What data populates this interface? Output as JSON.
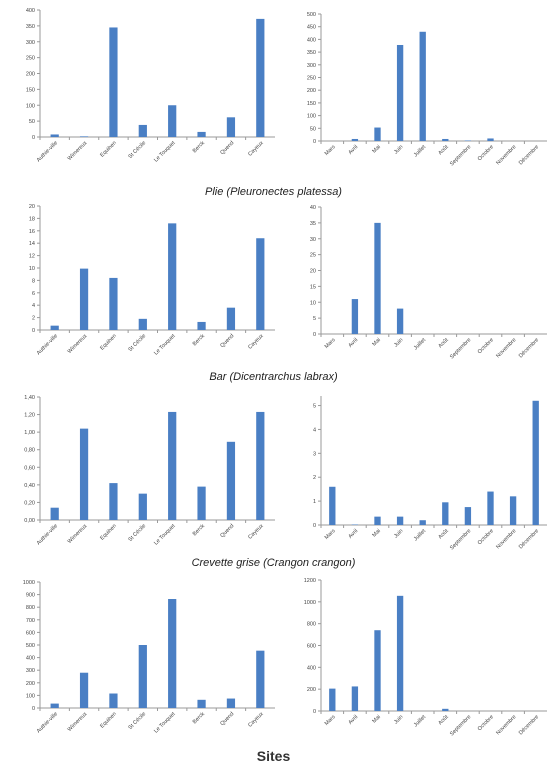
{
  "bar_color": "#4a7fc4",
  "axis_color": "#9a9a9a",
  "captions": [
    "Plie (Pleuronectes platessa)",
    "Bar (Dicentrarchus labrax)",
    "Crevette grise (Crangon crangon)"
  ],
  "x_title": "Sites",
  "chart_data": [
    {
      "type": "bar",
      "panel": "row1-left",
      "categories": [
        "Authie-ville",
        "Wimereux",
        "Equihen",
        "St Cécile",
        "Le Touquet",
        "Berck",
        "Quend",
        "Cayeux"
      ],
      "values": [
        8,
        2,
        345,
        38,
        100,
        16,
        62,
        372
      ],
      "ylim": [
        0,
        400
      ],
      "yticks": [
        "0",
        "50",
        "100",
        "150",
        "200",
        "250",
        "300",
        "350",
        "400"
      ]
    },
    {
      "type": "bar",
      "panel": "row1-right",
      "categories": [
        "Mars",
        "Avril",
        "Mai",
        "Juin",
        "Juillet",
        "Août",
        "Septembre",
        "Octobre",
        "Novembre",
        "Décembre"
      ],
      "values": [
        0,
        8,
        53,
        378,
        430,
        8,
        2,
        10,
        0,
        0
      ],
      "ylim": [
        0,
        500
      ],
      "yticks": [
        "0",
        "50",
        "100",
        "150",
        "200",
        "250",
        "300",
        "350",
        "400",
        "450",
        "500"
      ]
    },
    {
      "type": "bar",
      "panel": "row2-left",
      "categories": [
        "Authie-ville",
        "Wimereux",
        "Equihen",
        "St Cécile",
        "Le Touquet",
        "Berck",
        "Quend",
        "Cayeux"
      ],
      "values": [
        0.7,
        9.9,
        8.4,
        1.8,
        17.2,
        1.3,
        3.6,
        14.8
      ],
      "ylim": [
        0,
        20
      ],
      "yticks": [
        "0",
        "2",
        "4",
        "6",
        "8",
        "10",
        "12",
        "14",
        "16",
        "18",
        "20"
      ]
    },
    {
      "type": "bar",
      "panel": "row2-right",
      "categories": [
        "Mars",
        "Avril",
        "Mai",
        "Juin",
        "Juillet",
        "Août",
        "Septembre",
        "Octobre",
        "Novembre",
        "Décembre"
      ],
      "values": [
        0,
        11,
        35,
        8,
        0,
        0,
        0,
        0,
        0,
        0
      ],
      "ylim": [
        0,
        40
      ],
      "yticks": [
        "0",
        "5",
        "10",
        "15",
        "20",
        "25",
        "30",
        "35",
        "40"
      ]
    },
    {
      "type": "bar",
      "panel": "row3-left",
      "categories": [
        "Authie-ville",
        "Wimereux",
        "Equihen",
        "St Cécile",
        "Le Touquet",
        "Berck",
        "Quend",
        "Cayeux"
      ],
      "values": [
        0.14,
        1.04,
        0.42,
        0.3,
        1.23,
        0.38,
        0.89,
        1.23
      ],
      "ylim": [
        0,
        1.4
      ],
      "yticks": [
        "0,00",
        "0,20",
        "0,40",
        "0,60",
        "0,80",
        "1,00",
        "1,20",
        "1,40"
      ]
    },
    {
      "type": "bar",
      "panel": "row3-right",
      "categories": [
        "Mars",
        "Avril",
        "Mai",
        "Juin",
        "Juillet",
        "Août",
        "Septembre",
        "Octobre",
        "Novembre",
        "Décembre"
      ],
      "values": [
        1.6,
        0.02,
        0.35,
        0.35,
        0.2,
        0.95,
        0.75,
        1.4,
        1.2,
        5.2
      ],
      "ylim": [
        0,
        5.4
      ],
      "yticks": [
        "0",
        "1",
        "2",
        "3",
        "4",
        "5"
      ]
    },
    {
      "type": "bar",
      "panel": "row4-left",
      "categories": [
        "Authie-ville",
        "Wimereux",
        "Equihen",
        "St Cécile",
        "Le Touquet",
        "Berck",
        "Quend",
        "Cayeux"
      ],
      "values": [
        35,
        280,
        115,
        500,
        865,
        65,
        75,
        455
      ],
      "ylim": [
        0,
        1000
      ],
      "yticks": [
        "0",
        "100",
        "200",
        "300",
        "400",
        "500",
        "600",
        "700",
        "800",
        "900",
        "1000"
      ]
    },
    {
      "type": "bar",
      "panel": "row4-right",
      "categories": [
        "Mars",
        "Avril",
        "Mai",
        "Juin",
        "Juillet",
        "Août",
        "Septembre",
        "Octobre",
        "Novembre",
        "Décembre"
      ],
      "values": [
        205,
        225,
        740,
        1055,
        0,
        20,
        0,
        0,
        0,
        0
      ],
      "ylim": [
        0,
        1200
      ],
      "yticks": [
        "0",
        "200",
        "400",
        "600",
        "800",
        "1000",
        "1200"
      ]
    }
  ]
}
